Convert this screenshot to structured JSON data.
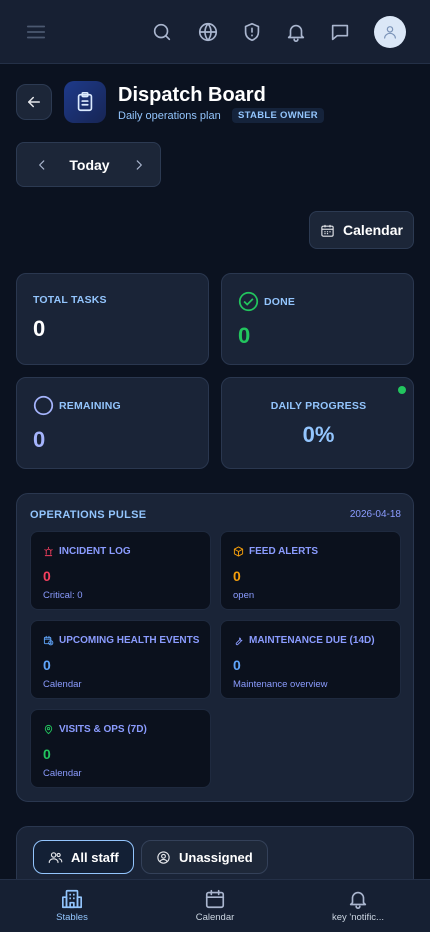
{
  "header": {
    "title": "Dispatch Board",
    "subtitle": "Daily operations plan",
    "role_badge": "STABLE OWNER"
  },
  "date_nav": {
    "label": "Today"
  },
  "calendar_button": {
    "label": "Calendar"
  },
  "stats": {
    "total_tasks": {
      "label": "TOTAL TASKS",
      "value": "0"
    },
    "done": {
      "label": "DONE",
      "value": "0"
    },
    "remaining": {
      "label": "REMAINING",
      "value": "0"
    },
    "daily_progress": {
      "label": "DAILY PROGRESS",
      "value": "0%"
    }
  },
  "pulse": {
    "title": "OPERATIONS PULSE",
    "date": "2026-04-18",
    "tiles": [
      {
        "label": "INCIDENT LOG",
        "value": "0",
        "sub": "Critical: 0",
        "color": "#f43f5e",
        "icon": "siren-icon"
      },
      {
        "label": "FEED ALERTS",
        "value": "0",
        "sub": "open",
        "color": "#f59e0b",
        "icon": "package-icon"
      },
      {
        "label": "UPCOMING HEALTH EVENTS",
        "value": "0",
        "sub": "Calendar",
        "color": "#60a5fa",
        "icon": "calendar-clock-icon"
      },
      {
        "label": "MAINTENANCE DUE (14D)",
        "value": "0",
        "sub": "Maintenance overview",
        "color": "#60a5fa",
        "icon": "wrench-icon"
      },
      {
        "label": "VISITS & OPS (7D)",
        "value": "0",
        "sub": "Calendar",
        "color": "#22c55e",
        "icon": "map-pin-icon"
      }
    ]
  },
  "filters": {
    "all_staff": "All staff",
    "unassigned": "Unassigned"
  },
  "bottom_nav": {
    "items": [
      {
        "label": "Stables",
        "icon": "building-icon"
      },
      {
        "label": "Calendar",
        "icon": "calendar-icon"
      },
      {
        "label": "key 'notific...",
        "icon": "bell-icon"
      }
    ]
  }
}
